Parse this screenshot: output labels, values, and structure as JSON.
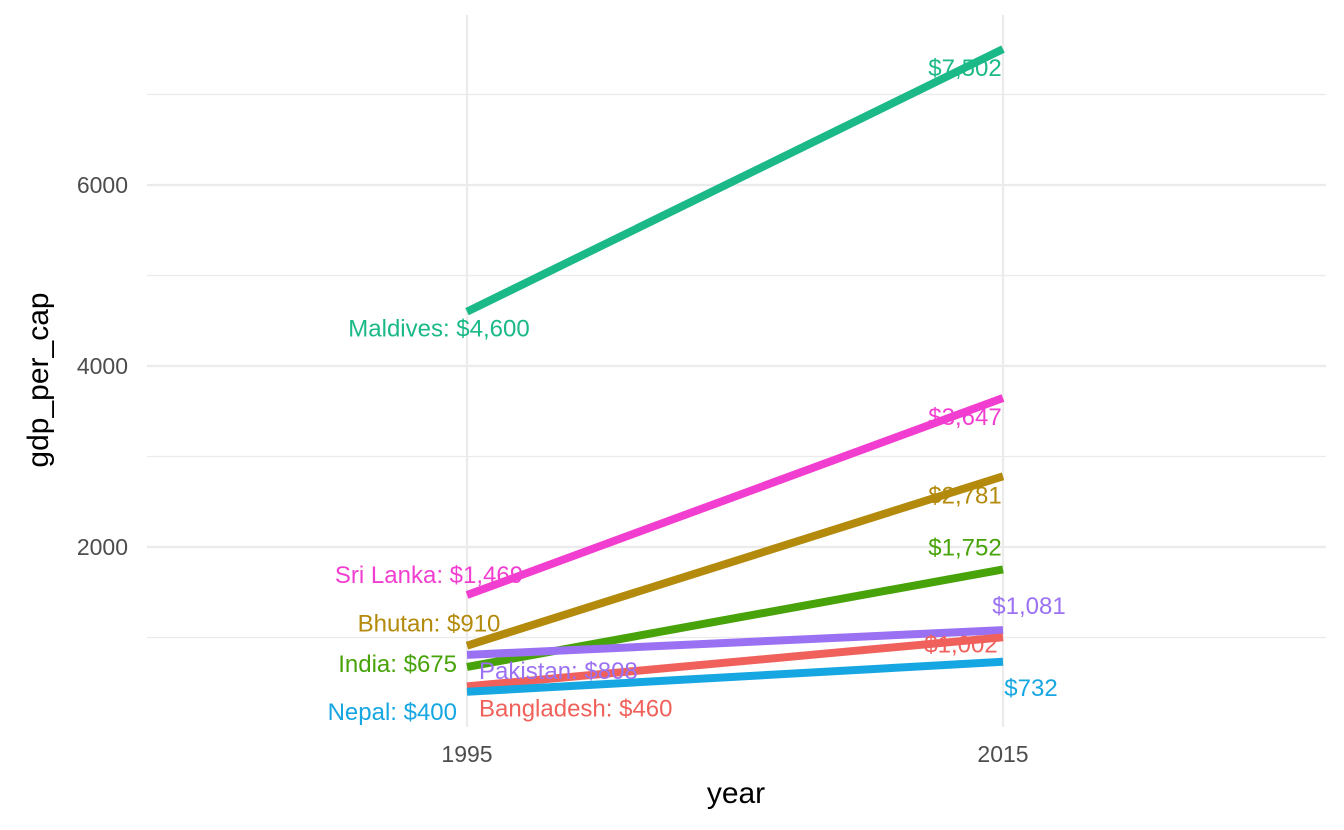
{
  "chart_data": {
    "type": "line",
    "xlabel": "year",
    "ylabel": "gdp_per_cap",
    "x": [
      1995,
      2015
    ],
    "x_ticks": [
      "1995",
      "2015"
    ],
    "y_ticks": [
      "2000",
      "4000",
      "6000"
    ],
    "grid": true,
    "legend": "none",
    "series": [
      {
        "name": "Maldives",
        "values": [
          4600,
          7502
        ],
        "color": "#1ab987",
        "label_start": "Maldives: $4,600",
        "label_end": "$7,502"
      },
      {
        "name": "Sri Lanka",
        "values": [
          1469,
          3647
        ],
        "color": "#f23ed0",
        "label_start": "Sri Lanka: $1,469",
        "label_end": "$3,647"
      },
      {
        "name": "Bhutan",
        "values": [
          910,
          2781
        ],
        "color": "#b38a0b",
        "label_start": "Bhutan: $910",
        "label_end": "$2,781"
      },
      {
        "name": "India",
        "values": [
          675,
          1752
        ],
        "color": "#48a30a",
        "label_start": "India: $675",
        "label_end": "$1,752"
      },
      {
        "name": "Pakistan",
        "values": [
          808,
          1081
        ],
        "color": "#9b71f3",
        "label_start": "Pakistan: $808",
        "label_end": "$1,081"
      },
      {
        "name": "Bangladesh",
        "values": [
          460,
          1002
        ],
        "color": "#f0615b",
        "label_start": "Bangladesh: $460",
        "label_end": "$1,002"
      },
      {
        "name": "Nepal",
        "values": [
          400,
          732
        ],
        "color": "#16a6e2",
        "label_start": "Nepal: $400",
        "label_end": "$732"
      }
    ]
  }
}
